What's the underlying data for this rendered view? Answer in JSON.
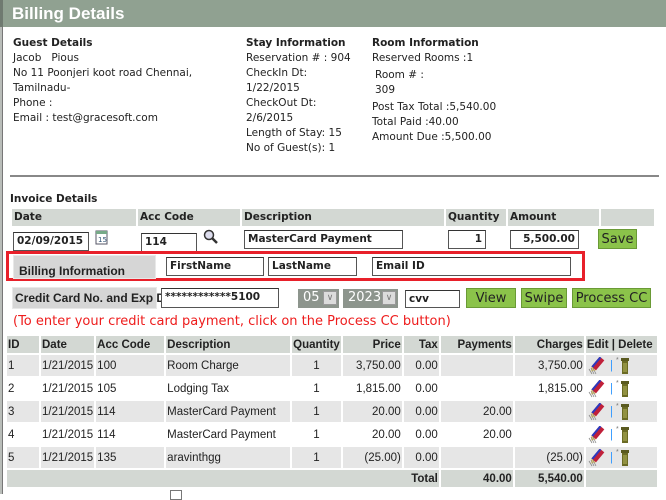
{
  "title": "Billing Details",
  "guest": {
    "heading": "Guest Details",
    "name": "Jacob   Pious",
    "address1": "No 11 Poonjeri koot road Chennai,",
    "address2": "Tamilnadu-",
    "phone": "Phone :",
    "email": "Email : test@gracesoft.com"
  },
  "stay": {
    "heading": "Stay Information",
    "reservation": "Reservation # : 904",
    "checkin_label": "CheckIn Dt:",
    "checkin": "1/22/2015",
    "checkout_label": "CheckOut Dt:",
    "checkout": "2/6/2015",
    "length": "Length of Stay: 15",
    "guests": "No of Guest(s): 1"
  },
  "room": {
    "heading": "Room Information",
    "reserved": "Reserved Rooms :1",
    "room_label": "Room # :",
    "room_no": "309",
    "post_tax": "Post Tax Total :5,540.00",
    "paid": "Total Paid :40.00",
    "due": "Amount Due :5,500.00"
  },
  "invoice": {
    "heading": "Invoice Details",
    "headers": {
      "date": "Date",
      "acc_code": "Acc Code",
      "description": "Description",
      "quantity": "Quantity",
      "amount": "Amount"
    },
    "date": "02/09/2015",
    "acc_code": "114",
    "description": "MasterCard Payment",
    "quantity": "1",
    "amount": "5,500.00",
    "save": "Save"
  },
  "billing": {
    "label": "Billing Information",
    "first_name": "FirstName",
    "last_name": "LastName",
    "email": "Email ID"
  },
  "card": {
    "label": "Credit Card No. and Exp Dt",
    "number": "************5100",
    "month": "05",
    "year": "2023",
    "cvv": "cvv",
    "view": "View",
    "swipe": "Swipe",
    "process": "Process CC"
  },
  "note": "(To enter your credit card payment, click on the Process CC button)",
  "table": {
    "headers": [
      "ID",
      "Date",
      "Acc Code",
      "Description",
      "Quantity",
      "Price",
      "Tax",
      "Payments",
      "Charges",
      "Edit | Delete"
    ],
    "rows": [
      {
        "id": "1",
        "date": "1/21/2015",
        "acc": "100",
        "desc": "Room Charge",
        "qty": "1",
        "price": "3,750.00",
        "tax": "0.00",
        "payments": "",
        "charges": "3,750.00"
      },
      {
        "id": "2",
        "date": "1/21/2015",
        "acc": "105",
        "desc": "Lodging Tax",
        "qty": "1",
        "price": "1,815.00",
        "tax": "0.00",
        "payments": "",
        "charges": "1,815.00"
      },
      {
        "id": "3",
        "date": "1/21/2015",
        "acc": "114",
        "desc": "MasterCard Payment",
        "qty": "1",
        "price": "20.00",
        "tax": "0.00",
        "payments": "20.00",
        "charges": ""
      },
      {
        "id": "4",
        "date": "1/21/2015",
        "acc": "114",
        "desc": "MasterCard Payment",
        "qty": "1",
        "price": "20.00",
        "tax": "0.00",
        "payments": "20.00",
        "charges": ""
      },
      {
        "id": "5",
        "date": "1/21/2015",
        "acc": "135",
        "desc": "aravinthgg",
        "qty": "1",
        "price": "(25.00)",
        "tax": "0.00",
        "payments": "",
        "charges": "(25.00)"
      }
    ],
    "total_label": "Total",
    "total_payments": "40.00",
    "total_charges": "5,540.00",
    "separator": "|"
  },
  "colors": {
    "title_bar": "#90a191",
    "header_bg": "#d3d8d3",
    "button": "#8bc34a",
    "note": "#ee1c1c",
    "highlight": "#e8202a"
  }
}
